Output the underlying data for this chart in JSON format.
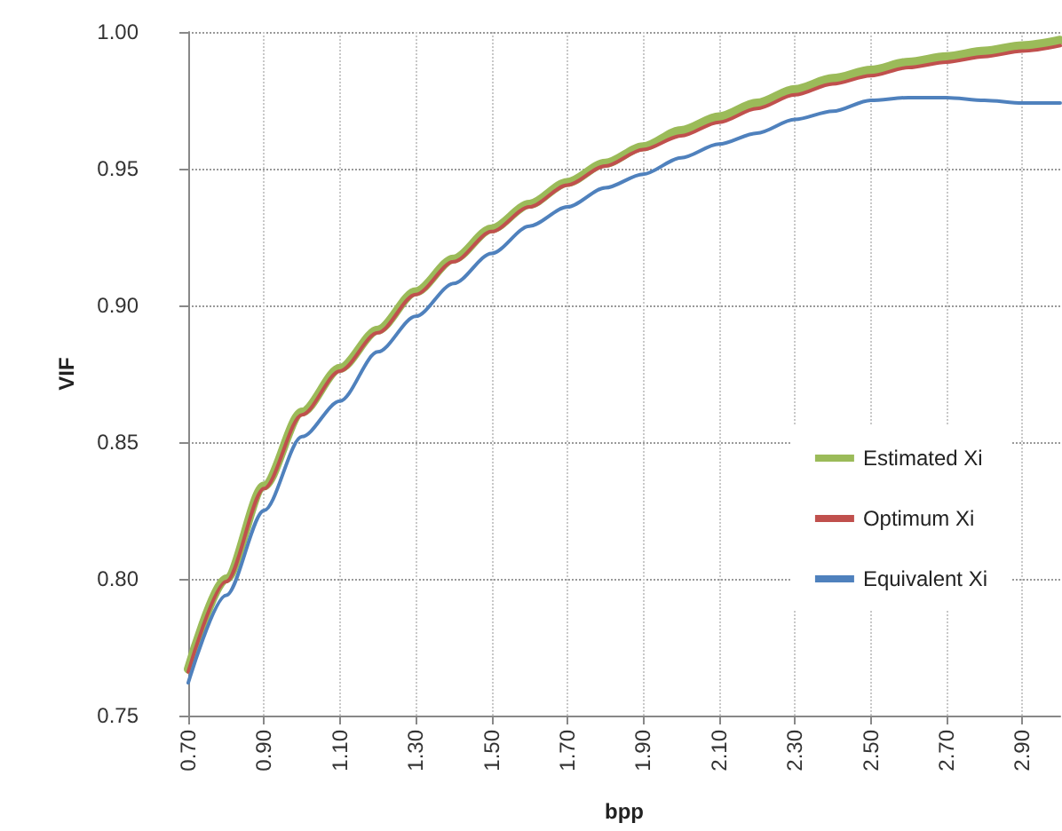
{
  "chart_data": {
    "type": "line",
    "xlabel": "bpp",
    "ylabel": "VIF",
    "x": [
      0.7,
      0.8,
      0.9,
      1.0,
      1.1,
      1.2,
      1.3,
      1.4,
      1.5,
      1.6,
      1.7,
      1.8,
      1.9,
      2.0,
      2.1,
      2.2,
      2.3,
      2.4,
      2.5,
      2.6,
      2.7,
      2.8,
      2.9,
      3.0
    ],
    "series": [
      {
        "name": "Estimated Xi",
        "color": "#9bbb59",
        "values": [
          0.767,
          0.8,
          0.834,
          0.861,
          0.877,
          0.891,
          0.905,
          0.917,
          0.928,
          0.937,
          0.945,
          0.952,
          0.958,
          0.964,
          0.969,
          0.974,
          0.979,
          0.983,
          0.986,
          0.989,
          0.991,
          0.993,
          0.995,
          0.997
        ]
      },
      {
        "name": "Optimum Xi",
        "color": "#c0504d",
        "values": [
          0.766,
          0.799,
          0.833,
          0.86,
          0.876,
          0.89,
          0.904,
          0.916,
          0.927,
          0.936,
          0.944,
          0.951,
          0.957,
          0.962,
          0.967,
          0.972,
          0.977,
          0.981,
          0.984,
          0.987,
          0.989,
          0.991,
          0.993,
          0.995
        ]
      },
      {
        "name": "Equivalent Xi",
        "color": "#4f81bd",
        "values": [
          0.762,
          0.794,
          0.825,
          0.852,
          0.865,
          0.883,
          0.896,
          0.908,
          0.919,
          0.929,
          0.936,
          0.943,
          0.948,
          0.954,
          0.959,
          0.963,
          0.968,
          0.971,
          0.975,
          0.976,
          0.976,
          0.975,
          0.974,
          0.974
        ]
      }
    ],
    "xlim": [
      0.7,
      3.0
    ],
    "xticks": [
      {
        "value": 0.7,
        "label": "0.70"
      },
      {
        "value": 0.9,
        "label": "0.90"
      },
      {
        "value": 1.1,
        "label": "1.10"
      },
      {
        "value": 1.3,
        "label": "1.30"
      },
      {
        "value": 1.5,
        "label": "1.50"
      },
      {
        "value": 1.7,
        "label": "1.70"
      },
      {
        "value": 1.9,
        "label": "1.90"
      },
      {
        "value": 2.1,
        "label": "2.10"
      },
      {
        "value": 2.3,
        "label": "2.30"
      },
      {
        "value": 2.5,
        "label": "2.50"
      },
      {
        "value": 2.7,
        "label": "2.70"
      },
      {
        "value": 2.9,
        "label": "2.90"
      }
    ],
    "ylim": [
      0.75,
      1.0
    ],
    "yticks": [
      {
        "value": 0.75,
        "label": "0.75"
      },
      {
        "value": 0.8,
        "label": "0.80"
      },
      {
        "value": 0.85,
        "label": "0.85"
      },
      {
        "value": 0.9,
        "label": "0.90"
      },
      {
        "value": 0.95,
        "label": "0.95"
      },
      {
        "value": 1.0,
        "label": "1.00"
      }
    ],
    "grid": true,
    "legend": "bottom right",
    "marker": "none",
    "line_style": "solid"
  }
}
